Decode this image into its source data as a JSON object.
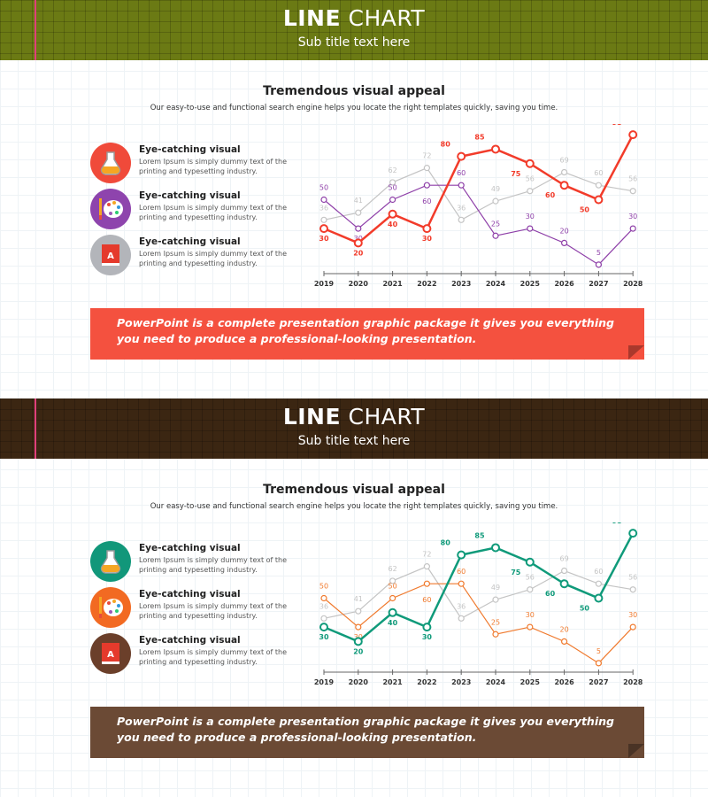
{
  "slides": [
    {
      "header": {
        "title_bold": "LINE",
        "title_rest": "CHART",
        "subtitle": "Sub title text here",
        "bg": "#6b7a14"
      },
      "heading": "Tremendous visual appeal",
      "description": "Our easy-to-use and functional search engine helps you locate the right templates quickly, saving you time.",
      "features": [
        {
          "title": "Eye-catching visual",
          "text": "Lorem Ipsum is simply dummy text of the printing and typesetting industry.",
          "icon": "flask-icon",
          "color": "#f04a3a"
        },
        {
          "title": "Eye-catching visual",
          "text": "Lorem Ipsum is simply dummy text of the printing and typesetting industry.",
          "icon": "palette-icon",
          "color": "#8e44ad"
        },
        {
          "title": "Eye-catching visual",
          "text": "Lorem Ipsum is simply dummy text of the printing and typesetting industry.",
          "icon": "book-icon",
          "color": "#b3b5ba"
        }
      ],
      "banner": {
        "text": "PowerPoint is a complete presentation graphic package it gives you everything you need to produce a professional-looking presentation.",
        "color": "#f4513f"
      }
    },
    {
      "header": {
        "title_bold": "LINE",
        "title_rest": "CHART",
        "subtitle": "Sub title text here",
        "bg": "#3b2612"
      },
      "heading": "Tremendous visual appeal",
      "description": "Our easy-to-use and functional search engine helps you locate the right templates quickly, saving you time.",
      "features": [
        {
          "title": "Eye-catching visual",
          "text": "Lorem Ipsum is simply dummy text of the printing and typesetting industry.",
          "icon": "flask-icon",
          "color": "#11977a"
        },
        {
          "title": "Eye-catching visual",
          "text": "Lorem Ipsum is simply dummy text of the printing and typesetting industry.",
          "icon": "palette-icon",
          "color": "#f26a22"
        },
        {
          "title": "Eye-catching visual",
          "text": "Lorem Ipsum is simply dummy text of the printing and typesetting industry.",
          "icon": "book-icon",
          "color": "#6b3f2a"
        }
      ],
      "banner": {
        "text": "PowerPoint is a complete presentation graphic package it gives you everything you need to produce a professional-looking presentation.",
        "color": "#6b4a35"
      }
    }
  ],
  "chart_data": [
    {
      "type": "line",
      "categories": [
        "2019",
        "2020",
        "2021",
        "2022",
        "2023",
        "2024",
        "2025",
        "2026",
        "2027",
        "2028"
      ],
      "ylim": [
        0,
        100
      ],
      "grid": false,
      "series": [
        {
          "values": [
            36,
            41,
            62,
            72,
            36,
            49,
            56,
            69,
            60,
            56
          ],
          "color": "#c4c4c4"
        },
        {
          "values": [
            50,
            30,
            50,
            60,
            60,
            25,
            30,
            20,
            5,
            30
          ],
          "color": "#8e3fa8"
        },
        {
          "values": [
            30,
            20,
            40,
            30,
            80,
            85,
            75,
            60,
            50,
            95
          ],
          "color": "#f23b2a"
        }
      ]
    },
    {
      "type": "line",
      "categories": [
        "2019",
        "2020",
        "2021",
        "2022",
        "2023",
        "2024",
        "2025",
        "2026",
        "2027",
        "2028"
      ],
      "ylim": [
        0,
        100
      ],
      "grid": false,
      "series": [
        {
          "values": [
            36,
            41,
            62,
            72,
            36,
            49,
            56,
            69,
            60,
            56
          ],
          "color": "#c4c4c4"
        },
        {
          "values": [
            50,
            30,
            50,
            60,
            60,
            25,
            30,
            20,
            5,
            30
          ],
          "color": "#f07a2e"
        },
        {
          "values": [
            30,
            20,
            40,
            30,
            80,
            85,
            75,
            60,
            50,
            95
          ],
          "color": "#0f9a7a"
        }
      ]
    }
  ]
}
